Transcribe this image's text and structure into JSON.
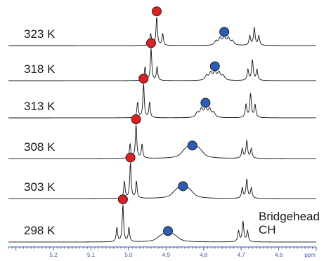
{
  "chart_data": {
    "type": "line",
    "title": "",
    "xlabel": "ppm",
    "ylabel": "",
    "xlim": [
      5.32,
      4.5
    ],
    "x_reversed": true,
    "x_ticks": [
      5.2,
      5.1,
      5.0,
      4.9,
      4.8,
      4.7,
      4.6
    ],
    "x_tick_labels": [
      "5.2",
      "5.1",
      "5.0",
      "4.9",
      "4.8",
      "4.7",
      "4.6"
    ],
    "annotation": [
      "Bridgehead",
      "CH"
    ],
    "marker_colors": {
      "red": "#e02020",
      "blue": "#2b5cb8"
    },
    "series": [
      {
        "name": "323 K",
        "red_triplet": {
          "center": 4.925,
          "spacing": 0.016,
          "heights": [
            0.35,
            0.85,
            0.35
          ]
        },
        "blue_multiplet": {
          "center": 4.745,
          "type": "quintet",
          "spacing": 0.011,
          "heights": [
            0.12,
            0.2,
            0.22,
            0.2,
            0.12
          ]
        },
        "bridgehead_triplet": {
          "center": 4.665,
          "spacing": 0.012,
          "heights": [
            0.28,
            0.52,
            0.28
          ]
        }
      },
      {
        "name": "318 K",
        "red_triplet": {
          "center": 4.94,
          "spacing": 0.016,
          "heights": [
            0.4,
            0.95,
            0.4
          ]
        },
        "blue_multiplet": {
          "center": 4.77,
          "type": "quintet",
          "spacing": 0.011,
          "heights": [
            0.14,
            0.22,
            0.24,
            0.22,
            0.14
          ]
        },
        "bridgehead_triplet": {
          "center": 4.67,
          "spacing": 0.012,
          "heights": [
            0.32,
            0.6,
            0.32
          ]
        }
      },
      {
        "name": "313 K",
        "red_triplet": {
          "center": 4.96,
          "spacing": 0.016,
          "heights": [
            0.45,
            1.0,
            0.45
          ]
        },
        "blue_multiplet": {
          "center": 4.795,
          "type": "quintet",
          "spacing": 0.011,
          "heights": [
            0.14,
            0.24,
            0.26,
            0.24,
            0.14
          ]
        },
        "bridgehead_triplet": {
          "center": 4.675,
          "spacing": 0.012,
          "heights": [
            0.38,
            0.7,
            0.38
          ]
        }
      },
      {
        "name": "308 K",
        "red_triplet": {
          "center": 4.98,
          "spacing": 0.016,
          "heights": [
            0.42,
            1.0,
            0.42
          ]
        },
        "blue_multiplet": {
          "center": 4.83,
          "type": "broad",
          "spacing": 0.011,
          "heights": [
            0.12,
            0.18,
            0.2,
            0.18,
            0.12
          ]
        },
        "bridgehead_triplet": {
          "center": 4.685,
          "spacing": 0.012,
          "heights": [
            0.28,
            0.52,
            0.28
          ]
        }
      },
      {
        "name": "303 K",
        "red_triplet": {
          "center": 4.995,
          "spacing": 0.016,
          "heights": [
            0.5,
            1.05,
            0.5
          ]
        },
        "blue_multiplet": {
          "center": 4.855,
          "type": "broad",
          "spacing": 0.011,
          "heights": [
            0.1,
            0.16,
            0.18,
            0.16,
            0.1
          ]
        },
        "bridgehead_triplet": {
          "center": 4.685,
          "spacing": 0.012,
          "heights": [
            0.3,
            0.56,
            0.3
          ]
        }
      },
      {
        "name": "298 K",
        "red_triplet": {
          "center": 5.015,
          "spacing": 0.016,
          "heights": [
            0.42,
            1.1,
            0.42
          ]
        },
        "blue_multiplet": {
          "center": 4.895,
          "type": "broad",
          "spacing": 0.011,
          "heights": [
            0.08,
            0.12,
            0.14,
            0.12,
            0.08
          ]
        },
        "bridgehead_triplet": {
          "center": 4.695,
          "spacing": 0.012,
          "heights": [
            0.32,
            0.6,
            0.32
          ]
        }
      }
    ]
  }
}
